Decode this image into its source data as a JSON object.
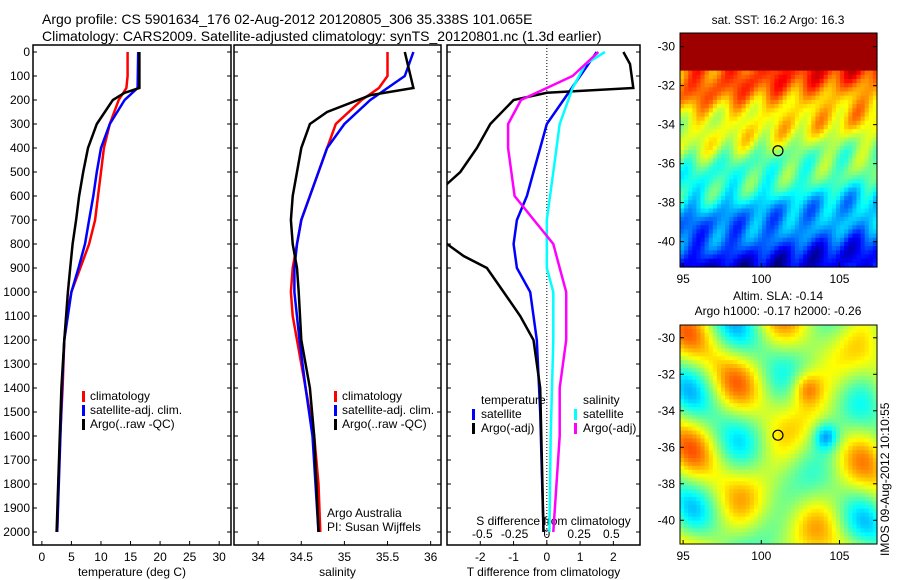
{
  "header": {
    "line1": "Argo profile: CS 5901634_176 02-Aug-2012 20120805_306 35.338S 101.065E",
    "line2": "Climatology: CARS2009. Satellite-adjusted climatology: synTS_20120801.nc (1.3d earlier)"
  },
  "colors": {
    "climatology": "#ff0000",
    "satellite": "#0000ff",
    "argo": "#000000",
    "sal_sat": "#00ffff",
    "sal_argo": "#ff00ff"
  },
  "chart_data": [
    {
      "type": "line",
      "id": "temperature",
      "xlabel": "temperature (deg C)",
      "xlim": [
        -1.5,
        32
      ],
      "ylim": [
        2050,
        0
      ],
      "xticks": [
        0,
        5,
        10,
        15,
        20,
        25,
        30
      ],
      "yticks": [
        0,
        100,
        200,
        300,
        400,
        500,
        600,
        700,
        800,
        900,
        1000,
        1100,
        1200,
        1300,
        1400,
        1500,
        1600,
        1700,
        1800,
        1900,
        2000
      ],
      "legend": [
        "climatology",
        "satellite-adj. clim.",
        "Argo(..raw -QC)"
      ],
      "series": [
        {
          "name": "climatology",
          "color": "#ff0000",
          "depth": [
            0,
            50,
            100,
            150,
            200,
            300,
            400,
            500,
            600,
            700,
            800,
            900,
            1000,
            1100,
            1200,
            1400,
            1600,
            1800,
            2000
          ],
          "values": [
            14.5,
            14.5,
            14.5,
            14.3,
            13,
            11.5,
            10.5,
            10,
            9.5,
            9,
            8,
            6.5,
            5,
            4.2,
            3.8,
            3.5,
            3.1,
            2.8,
            2.6
          ]
        },
        {
          "name": "satellite-adj. clim.",
          "color": "#0000ff",
          "depth": [
            0,
            150,
            200,
            300,
            400,
            500,
            600,
            700,
            800,
            900,
            1000,
            1200,
            1400,
            2000
          ],
          "values": [
            16.3,
            16.2,
            14,
            11.5,
            10,
            9.3,
            8.7,
            8,
            7.3,
            6.2,
            5,
            3.8,
            3.4,
            2.6
          ]
        },
        {
          "name": "Argo(..raw -QC)",
          "color": "#000000",
          "depth": [
            0,
            150,
            170,
            200,
            300,
            400,
            500,
            600,
            700,
            800,
            900,
            1000,
            1200,
            1400,
            2000
          ],
          "values": [
            16.5,
            16.5,
            14,
            12,
            9.3,
            7.8,
            7,
            6.3,
            5.8,
            5.2,
            4.8,
            4.4,
            3.8,
            3.3,
            2.5
          ]
        }
      ]
    },
    {
      "type": "line",
      "id": "salinity",
      "xlabel": "salinity",
      "xlim": [
        33.72,
        36.12
      ],
      "ylim": [
        2050,
        0
      ],
      "xticks": [
        34,
        34.5,
        35,
        35.5,
        36
      ],
      "legend": [
        "climatology",
        "satellite-adj. clim.",
        "Argo(..raw -QC)"
      ],
      "annotation": [
        "Argo Australia",
        "PI: Susan Wijffels"
      ],
      "series": [
        {
          "name": "climatology",
          "color": "#ff0000",
          "depth": [
            0,
            100,
            150,
            200,
            300,
            400,
            500,
            600,
            700,
            800,
            900,
            1000,
            1100,
            1200,
            1300,
            1400,
            1600,
            1800,
            2000
          ],
          "values": [
            35.5,
            35.5,
            35.4,
            35.2,
            34.9,
            34.8,
            34.7,
            34.6,
            34.5,
            34.45,
            34.4,
            34.38,
            34.4,
            34.45,
            34.5,
            34.55,
            34.65,
            34.7,
            34.72
          ]
        },
        {
          "name": "satellite-adj. clim.",
          "color": "#0000ff",
          "depth": [
            0,
            50,
            100,
            150,
            200,
            300,
            400,
            500,
            600,
            700,
            800,
            900,
            1000,
            1200,
            1400,
            1600,
            2000
          ],
          "values": [
            35.8,
            35.75,
            35.7,
            35.5,
            35.3,
            35.0,
            34.8,
            34.7,
            34.6,
            34.5,
            34.45,
            34.42,
            34.42,
            34.48,
            34.55,
            34.63,
            34.7
          ]
        },
        {
          "name": "Argo(..raw -QC)",
          "color": "#000000",
          "depth": [
            0,
            150,
            180,
            250,
            300,
            400,
            500,
            600,
            700,
            800,
            900,
            1000,
            1200,
            1400,
            1600,
            2000
          ],
          "values": [
            35.7,
            35.8,
            35.3,
            34.8,
            34.6,
            34.5,
            34.45,
            34.4,
            34.38,
            34.4,
            34.45,
            34.47,
            34.5,
            34.6,
            34.65,
            34.7
          ]
        }
      ]
    },
    {
      "type": "line",
      "id": "difference",
      "xlabel": "T difference from climatology",
      "xlabel_top": "S difference from climatology",
      "xlim": [
        -3,
        2.8
      ],
      "ylim": [
        2050,
        0
      ],
      "xticks": [
        -2,
        -1,
        0,
        1,
        2
      ],
      "xticklabels": [
        "-2",
        "-1",
        "0",
        "1",
        "2"
      ],
      "sticks": [
        -0.5,
        -0.25,
        0,
        0.25,
        0.5
      ],
      "sticklabels": [
        "-0.5",
        "-0.25",
        "0",
        "0.25",
        "0.5"
      ],
      "legend_groups": {
        "temperature": "temperature",
        "salinity": "salinity"
      },
      "legend": [
        "satellite",
        "Argo(-adj)",
        "satellite",
        "Argo(-adj)"
      ],
      "series": [
        {
          "name": "T satellite",
          "color": "#0000ff",
          "unit": "T",
          "depth": [
            0,
            100,
            200,
            300,
            400,
            500,
            600,
            700,
            800,
            900,
            1000,
            1200,
            1500,
            2000
          ],
          "values": [
            1.5,
            1.0,
            0.5,
            0,
            -0.2,
            -0.4,
            -0.6,
            -0.9,
            -1.0,
            -0.9,
            -0.5,
            -0.3,
            -0.2,
            -0.1
          ]
        },
        {
          "name": "T Argo(-adj)",
          "color": "#000000",
          "unit": "T",
          "depth": [
            0,
            50,
            150,
            170,
            200,
            300,
            400,
            500,
            550,
            600,
            750,
            800,
            850,
            900,
            1000,
            1100,
            1200,
            1400,
            2000
          ],
          "values": [
            2.3,
            2.5,
            2.6,
            0,
            -1,
            -1.7,
            -2.1,
            -2.6,
            -3.0,
            -3.3,
            -3.3,
            -3.0,
            -2.5,
            -1.8,
            -1.3,
            -0.8,
            -0.4,
            -0.2,
            -0.1
          ]
        },
        {
          "name": "S satellite",
          "color": "#00ffff",
          "unit": "S",
          "depth": [
            0,
            50,
            150,
            300,
            500,
            700,
            900,
            1000,
            1200,
            1600,
            2000
          ],
          "values": [
            0.45,
            0.3,
            0.2,
            0.1,
            0.05,
            0.0,
            0.0,
            0.05,
            0.05,
            0.03,
            0.02
          ]
        },
        {
          "name": "S Argo(-adj)",
          "color": "#ff00ff",
          "unit": "S",
          "depth": [
            0,
            100,
            200,
            300,
            400,
            600,
            700,
            800,
            900,
            1000,
            1200,
            1400,
            1600,
            2000
          ],
          "values": [
            0.4,
            0.2,
            -0.2,
            -0.3,
            -0.3,
            -0.25,
            -0.1,
            0.05,
            0.1,
            0.15,
            0.15,
            0.1,
            0.1,
            0.05
          ]
        }
      ]
    },
    {
      "type": "heatmap",
      "id": "sst-map",
      "title": "sat. SST: 16.2 Argo: 16.3",
      "xticks": [
        95,
        100,
        105
      ],
      "yticks": [
        -30,
        -32,
        -34,
        -36,
        -38,
        -40
      ],
      "xlim": [
        94.8,
        107.4
      ],
      "ylim": [
        -41.3,
        -29.3
      ],
      "marker": {
        "lon": 101.065,
        "lat": -35.338
      }
    },
    {
      "type": "heatmap",
      "id": "sla-map",
      "title1": "Altim. SLA: -0.14",
      "title2": "Argo h1000: -0.17 h2000: -0.26",
      "xticks": [
        95,
        100,
        105
      ],
      "yticks": [
        -30,
        -32,
        -34,
        -36,
        -38,
        -40
      ],
      "xlim": [
        94.8,
        107.4
      ],
      "ylim": [
        -41.3,
        -29.3
      ],
      "marker": {
        "lon": 101.065,
        "lat": -35.338
      }
    }
  ],
  "footer": {
    "credit": "IMOS 09-Aug-2012 10:10:55"
  }
}
